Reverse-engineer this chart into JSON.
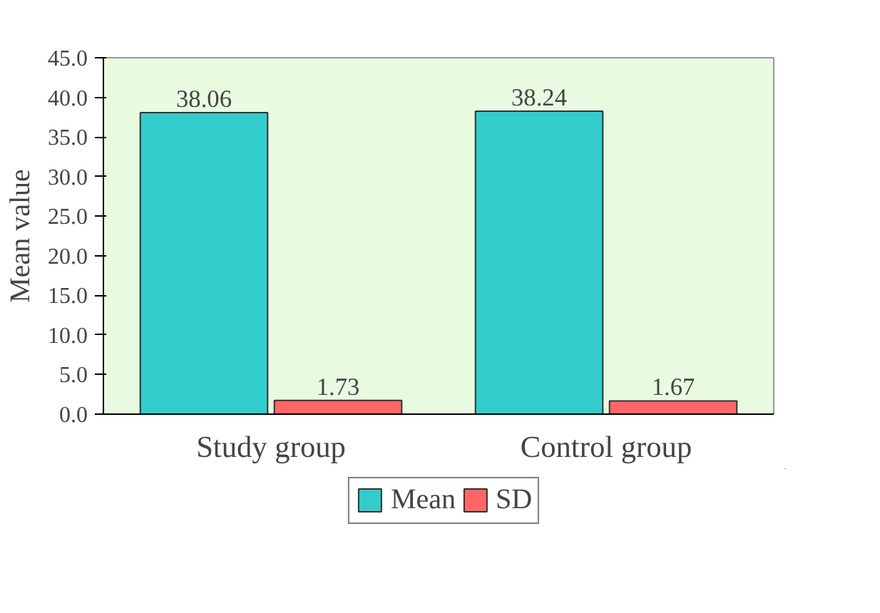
{
  "chart_data": {
    "type": "bar",
    "ylabel": "Mean value",
    "categories": [
      "Study group",
      "Control group"
    ],
    "series": [
      {
        "name": "Mean",
        "color": "#33cccc",
        "values": [
          38.06,
          38.24
        ]
      },
      {
        "name": "SD",
        "color": "#ff6666",
        "values": [
          1.73,
          1.67
        ]
      }
    ],
    "ylim": [
      0,
      45
    ],
    "yticks": [
      {
        "value": 0,
        "label": "0.0"
      },
      {
        "value": 5,
        "label": "5.0"
      },
      {
        "value": 10,
        "label": "10.0"
      },
      {
        "value": 15,
        "label": "15.0"
      },
      {
        "value": 20,
        "label": "20.0"
      },
      {
        "value": 25,
        "label": "25.0"
      },
      {
        "value": 30,
        "label": "30.0"
      },
      {
        "value": 35,
        "label": "35.0"
      },
      {
        "value": 40,
        "label": "40.0"
      },
      {
        "value": 45,
        "label": "45.0"
      }
    ],
    "data_labels": true,
    "legend": "bottom",
    "grid": false
  }
}
